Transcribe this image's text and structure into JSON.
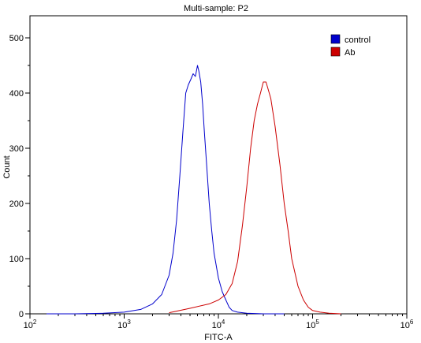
{
  "chart_data": {
    "type": "line",
    "title": "Multi-sample: P2",
    "xlabel": "FITC-A",
    "ylabel": "Count",
    "x_scale": "log",
    "xlim": [
      100,
      1000000
    ],
    "ylim": [
      0,
      540
    ],
    "x_ticks": [
      {
        "value": 100,
        "base": "10",
        "exp": "2"
      },
      {
        "value": 1000,
        "base": "10",
        "exp": "3"
      },
      {
        "value": 10000,
        "base": "10",
        "exp": "4"
      },
      {
        "value": 100000,
        "base": "10",
        "exp": "5"
      },
      {
        "value": 1000000,
        "base": "10",
        "exp": "6"
      }
    ],
    "y_ticks": [
      0,
      100,
      200,
      300,
      400,
      500
    ],
    "grid": false,
    "legend_position": "top-right",
    "series": [
      {
        "name": "control",
        "color": "#0000cc",
        "x": [
          150,
          300,
          600,
          1000,
          1500,
          2000,
          2500,
          3000,
          3300,
          3600,
          3900,
          4200,
          4500,
          4800,
          5100,
          5400,
          5700,
          6000,
          6200,
          6500,
          6800,
          7100,
          7500,
          8000,
          8500,
          9000,
          10000,
          11000,
          12000,
          13000,
          14000,
          16000,
          20000,
          30000,
          50000
        ],
        "y": [
          0,
          0,
          1,
          3,
          8,
          18,
          35,
          70,
          110,
          170,
          250,
          330,
          400,
          415,
          425,
          435,
          430,
          450,
          440,
          420,
          380,
          330,
          270,
          200,
          150,
          110,
          65,
          40,
          25,
          12,
          6,
          3,
          1,
          0,
          0
        ]
      },
      {
        "name": "Ab",
        "color": "#cc0000",
        "x": [
          3000,
          5000,
          8000,
          10000,
          12000,
          14000,
          16000,
          18000,
          20000,
          22000,
          24000,
          26000,
          28000,
          30000,
          32000,
          34000,
          36000,
          40000,
          45000,
          50000,
          55000,
          60000,
          70000,
          80000,
          90000,
          100000,
          120000,
          150000,
          200000
        ],
        "y": [
          2,
          10,
          18,
          25,
          35,
          55,
          95,
          160,
          230,
          300,
          350,
          380,
          400,
          420,
          420,
          405,
          390,
          340,
          270,
          200,
          150,
          100,
          50,
          25,
          12,
          6,
          3,
          1,
          0
        ]
      }
    ]
  }
}
